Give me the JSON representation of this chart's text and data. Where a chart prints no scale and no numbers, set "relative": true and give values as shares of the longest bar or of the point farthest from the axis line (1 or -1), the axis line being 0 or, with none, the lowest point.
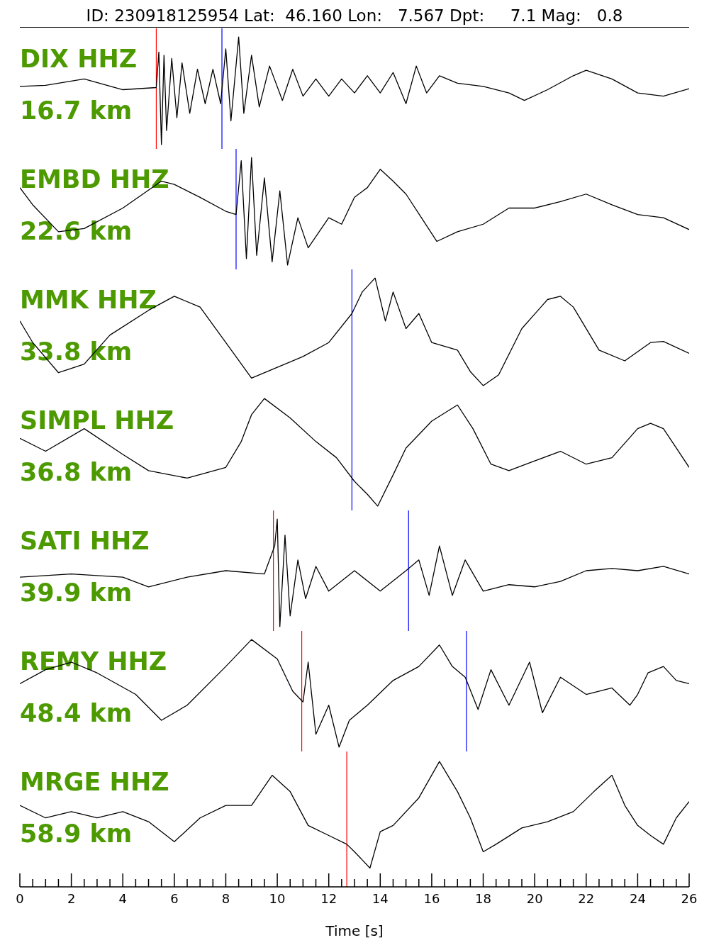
{
  "chart_data": [
    {
      "type": "line",
      "title": "ID: 230918125954 Lat:  46.160 Lon:   7.567 Dpt:     7.1 Mag:   0.8",
      "relative": true,
      "color": "#000000",
      "xlim": [
        0,
        26
      ],
      "tick_labels": false,
      "annotations": [
        "DIX HHZ",
        "16.7 km"
      ],
      "ref_lines": [
        {
          "axis": "x",
          "value": 5.3,
          "color": "#ff0000"
        },
        {
          "axis": "x",
          "value": 7.85,
          "color": "#0000ff"
        }
      ],
      "x": [
        0,
        1,
        2.5,
        4,
        5.3,
        5.4,
        5.5,
        5.6,
        5.7,
        5.9,
        6.1,
        6.3,
        6.6,
        6.9,
        7.2,
        7.5,
        7.8,
        8.0,
        8.2,
        8.5,
        8.7,
        9.0,
        9.3,
        9.7,
        10.2,
        10.6,
        11,
        11.5,
        12,
        12.5,
        13,
        13.5,
        14,
        14.5,
        15,
        15.4,
        15.8,
        16.3,
        17,
        18,
        19,
        19.6,
        20.5,
        21.5,
        22,
        23,
        24,
        25,
        26
      ],
      "values": [
        0.54,
        0.55,
        0.61,
        0.51,
        0.53,
        0.86,
        0,
        0.83,
        0.13,
        0.8,
        0.25,
        0.76,
        0.29,
        0.7,
        0.38,
        0.7,
        0.38,
        0.89,
        0.22,
        1.0,
        0.29,
        0.83,
        0.35,
        0.73,
        0.41,
        0.7,
        0.45,
        0.61,
        0.45,
        0.61,
        0.48,
        0.64,
        0.48,
        0.67,
        0.38,
        0.73,
        0.48,
        0.64,
        0.57,
        0.54,
        0.48,
        0.41,
        0.51,
        0.64,
        0.69,
        0.61,
        0.48,
        0.45,
        0.52
      ]
    },
    {
      "type": "line",
      "relative": true,
      "color": "#000000",
      "xlim": [
        0,
        26
      ],
      "tick_labels": false,
      "annotations": [
        "EMBD HHZ",
        "22.6 km"
      ],
      "ref_lines": [
        {
          "axis": "x",
          "value": 8.4,
          "color": "#0000ff"
        }
      ],
      "x": [
        0,
        0.5,
        1.5,
        2.5,
        4,
        5.5,
        6,
        7,
        8,
        8.4,
        8.6,
        8.8,
        9.0,
        9.2,
        9.5,
        9.8,
        10.1,
        10.4,
        10.8,
        11.2,
        12,
        12.5,
        13,
        13.5,
        14,
        14.5,
        15,
        15.6,
        16.2,
        17,
        18,
        19,
        20,
        21,
        22,
        23,
        24,
        25,
        26
      ],
      "values": [
        0.72,
        0.56,
        0.31,
        0.34,
        0.53,
        0.78,
        0.75,
        0.63,
        0.5,
        0.47,
        0.97,
        0.06,
        1.0,
        0.09,
        0.81,
        0.03,
        0.69,
        0,
        0.44,
        0.16,
        0.44,
        0.38,
        0.63,
        0.72,
        0.89,
        0.78,
        0.66,
        0.44,
        0.22,
        0.31,
        0.38,
        0.53,
        0.53,
        0.59,
        0.66,
        0.56,
        0.47,
        0.44,
        0.33
      ]
    },
    {
      "type": "line",
      "relative": true,
      "color": "#000000",
      "xlim": [
        0,
        26
      ],
      "tick_labels": false,
      "annotations": [
        "MMK HHZ",
        "33.8 km"
      ],
      "ref_lines": [
        {
          "axis": "x",
          "value": 12.9,
          "color": "#0000ff"
        }
      ],
      "x": [
        0,
        0.5,
        1.5,
        2.5,
        3.5,
        5,
        6,
        7,
        8,
        9,
        10,
        11,
        12,
        12.9,
        13.3,
        13.8,
        14.2,
        14.5,
        15,
        15.5,
        16,
        17,
        17.5,
        18,
        18.6,
        19.5,
        20.5,
        21,
        21.5,
        22.5,
        23.5,
        24.5,
        25,
        26
      ],
      "values": [
        0.6,
        0.4,
        0.12,
        0.2,
        0.47,
        0.7,
        0.83,
        0.73,
        0.4,
        0.07,
        0.17,
        0.27,
        0.4,
        0.67,
        0.87,
        1,
        0.6,
        0.87,
        0.53,
        0.67,
        0.4,
        0.33,
        0.13,
        0,
        0.1,
        0.53,
        0.8,
        0.83,
        0.73,
        0.33,
        0.23,
        0.4,
        0.41,
        0.3
      ]
    },
    {
      "type": "line",
      "relative": true,
      "color": "#000000",
      "xlim": [
        0,
        26
      ],
      "tick_labels": false,
      "annotations": [
        "SIMPL HHZ",
        "36.8 km"
      ],
      "ref_lines": [
        {
          "axis": "x",
          "value": 12.9,
          "color": "#0000ff"
        }
      ],
      "x": [
        0,
        1,
        2.5,
        4,
        5,
        6.5,
        8,
        8.6,
        9,
        9.5,
        10.5,
        11.5,
        12.3,
        13,
        13.5,
        13.9,
        14.5,
        15,
        16,
        17,
        17.6,
        18.3,
        19,
        20,
        21,
        22,
        23,
        24,
        24.5,
        25,
        25.5,
        26
      ],
      "values": [
        0.63,
        0.51,
        0.72,
        0.48,
        0.33,
        0.26,
        0.36,
        0.6,
        0.85,
        1,
        0.82,
        0.6,
        0.45,
        0.23,
        0.11,
        0,
        0.29,
        0.54,
        0.79,
        0.94,
        0.72,
        0.39,
        0.33,
        0.42,
        0.51,
        0.39,
        0.45,
        0.72,
        0.77,
        0.72,
        0.54,
        0.36
      ]
    },
    {
      "type": "line",
      "relative": true,
      "color": "#000000",
      "xlim": [
        0,
        26
      ],
      "tick_labels": false,
      "annotations": [
        "SATI HHZ",
        "39.9 km"
      ],
      "ref_lines": [
        {
          "axis": "x",
          "value": 9.85,
          "color": "#ff0000"
        },
        {
          "axis": "x",
          "value": 15.1,
          "color": "#0000ff"
        }
      ],
      "x": [
        0,
        2,
        4,
        5,
        6.5,
        8,
        9.5,
        9.9,
        10.0,
        10.1,
        10.3,
        10.5,
        10.8,
        11.1,
        11.5,
        12,
        13,
        14,
        15,
        15.5,
        15.9,
        16.3,
        16.8,
        17.3,
        18,
        19,
        20,
        21,
        22,
        23,
        24,
        25,
        26
      ],
      "values": [
        0.46,
        0.49,
        0.46,
        0.37,
        0.46,
        0.52,
        0.49,
        0.75,
        1,
        0,
        0.85,
        0.1,
        0.62,
        0.26,
        0.56,
        0.33,
        0.52,
        0.33,
        0.52,
        0.62,
        0.29,
        0.75,
        0.29,
        0.62,
        0.33,
        0.39,
        0.37,
        0.42,
        0.52,
        0.54,
        0.52,
        0.56,
        0.49
      ]
    },
    {
      "type": "line",
      "relative": true,
      "color": "#000000",
      "xlim": [
        0,
        26
      ],
      "tick_labels": false,
      "annotations": [
        "REMY HHZ",
        "48.4 km"
      ],
      "ref_lines": [
        {
          "axis": "x",
          "value": 10.95,
          "color": "#ff0000"
        },
        {
          "axis": "x",
          "value": 17.35,
          "color": "#0000ff"
        }
      ],
      "x": [
        0,
        1,
        2,
        3,
        4.5,
        5.5,
        6.5,
        8,
        9,
        10,
        10.6,
        11,
        11.2,
        11.5,
        12,
        12.4,
        12.8,
        13.5,
        14.5,
        15.5,
        16.3,
        16.8,
        17.3,
        17.8,
        18.3,
        19,
        19.8,
        20.3,
        21,
        22,
        23,
        23.7,
        24,
        24.4,
        25,
        25.5,
        26
      ],
      "values": [
        0.59,
        0.72,
        0.79,
        0.69,
        0.49,
        0.25,
        0.39,
        0.75,
        1,
        0.82,
        0.52,
        0.42,
        0.79,
        0.12,
        0.39,
        0,
        0.25,
        0.39,
        0.62,
        0.75,
        0.95,
        0.75,
        0.65,
        0.35,
        0.72,
        0.39,
        0.79,
        0.32,
        0.65,
        0.49,
        0.55,
        0.39,
        0.49,
        0.69,
        0.75,
        0.62,
        0.59
      ]
    },
    {
      "type": "line",
      "relative": true,
      "color": "#000000",
      "xlim": [
        0,
        26
      ],
      "xlabel": "Time [s]",
      "annotations": [
        "MRGE HHZ",
        "58.9 km"
      ],
      "ref_lines": [
        {
          "axis": "x",
          "value": 12.7,
          "color": "#ff0000"
        }
      ],
      "xticks": [
        0,
        {
          "value": 0.5,
          "label": null
        },
        {
          "value": 1,
          "label": null
        },
        {
          "value": 1.5,
          "label": null
        },
        2,
        {
          "value": 2.5,
          "label": null
        },
        {
          "value": 3,
          "label": null
        },
        {
          "value": 3.5,
          "label": null
        },
        4,
        {
          "value": 4.5,
          "label": null
        },
        {
          "value": 5,
          "label": null
        },
        {
          "value": 5.5,
          "label": null
        },
        6,
        {
          "value": 6.5,
          "label": null
        },
        {
          "value": 7,
          "label": null
        },
        {
          "value": 7.5,
          "label": null
        },
        8,
        {
          "value": 8.5,
          "label": null
        },
        {
          "value": 9,
          "label": null
        },
        {
          "value": 9.5,
          "label": null
        },
        10,
        {
          "value": 10.5,
          "label": null
        },
        {
          "value": 11,
          "label": null
        },
        {
          "value": 11.5,
          "label": null
        },
        12,
        {
          "value": 12.5,
          "label": null
        },
        {
          "value": 13,
          "label": null
        },
        {
          "value": 13.5,
          "label": null
        },
        14,
        {
          "value": 14.5,
          "label": null
        },
        {
          "value": 15,
          "label": null
        },
        {
          "value": 15.5,
          "label": null
        },
        16,
        {
          "value": 16.5,
          "label": null
        },
        {
          "value": 17,
          "label": null
        },
        {
          "value": 17.5,
          "label": null
        },
        18,
        {
          "value": 18.5,
          "label": null
        },
        {
          "value": 19,
          "label": null
        },
        {
          "value": 19.5,
          "label": null
        },
        20,
        {
          "value": 20.5,
          "label": null
        },
        {
          "value": 21,
          "label": null
        },
        {
          "value": 21.5,
          "label": null
        },
        22,
        {
          "value": 22.5,
          "label": null
        },
        {
          "value": 23,
          "label": null
        },
        {
          "value": 23.5,
          "label": null
        },
        24,
        {
          "value": 24.5,
          "label": null
        },
        {
          "value": 25,
          "label": null
        },
        {
          "value": 25.5,
          "label": null
        },
        26
      ],
      "x": [
        0,
        1,
        2,
        3,
        4,
        5,
        6,
        7,
        8,
        9,
        9.8,
        10.5,
        11.2,
        12,
        12.7,
        13,
        13.6,
        14,
        14.5,
        15.5,
        16.3,
        17,
        17.5,
        18,
        18.5,
        19.5,
        20.5,
        21.5,
        22.3,
        23,
        23.5,
        24,
        24.5,
        25,
        25.5,
        26
      ],
      "values": [
        0.65,
        0.55,
        0.6,
        0.55,
        0.6,
        0.52,
        0.36,
        0.55,
        0.65,
        0.65,
        0.89,
        0.76,
        0.49,
        0.41,
        0.34,
        0.28,
        0.15,
        0.44,
        0.49,
        0.71,
        1,
        0.76,
        0.55,
        0.28,
        0.34,
        0.47,
        0.52,
        0.6,
        0.76,
        0.89,
        0.65,
        0.49,
        0.41,
        0.34,
        0.55,
        0.68
      ]
    }
  ]
}
